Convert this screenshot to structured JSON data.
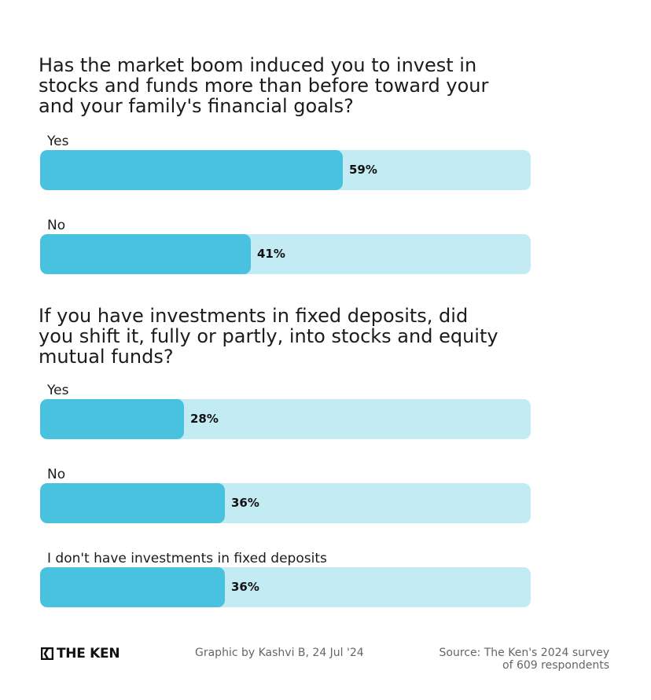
{
  "chart_data": [
    {
      "type": "bar",
      "orientation": "horizontal",
      "title": "Has the market boom induced you to invest in\nstocks and funds more than before toward your\nand your family's financial goals?",
      "categories": [
        "Yes",
        "No"
      ],
      "values": [
        59,
        41
      ],
      "value_labels": [
        "59%",
        "41%"
      ],
      "xlim": [
        0,
        100
      ],
      "unit": "%"
    },
    {
      "type": "bar",
      "orientation": "horizontal",
      "title": "If you have investments in fixed deposits, did\nyou shift it, fully or partly, into stocks and equity\nmutual funds?",
      "categories": [
        "Yes",
        "No",
        "I don't have investments in fixed deposits"
      ],
      "values": [
        28,
        36,
        36
      ],
      "value_labels": [
        "28%",
        "36%",
        "36%"
      ],
      "xlim": [
        0,
        100
      ],
      "unit": "%"
    }
  ],
  "colors": {
    "bar_fill": "#48c2df",
    "bar_track": "#c3ebf4"
  },
  "footer": {
    "logo_text": "THE KEN",
    "credit": "Graphic by Kashvi B, 24 Jul '24",
    "source_line1": "Source: The Ken's 2024 survey",
    "source_line2": "of 609 respondents"
  }
}
